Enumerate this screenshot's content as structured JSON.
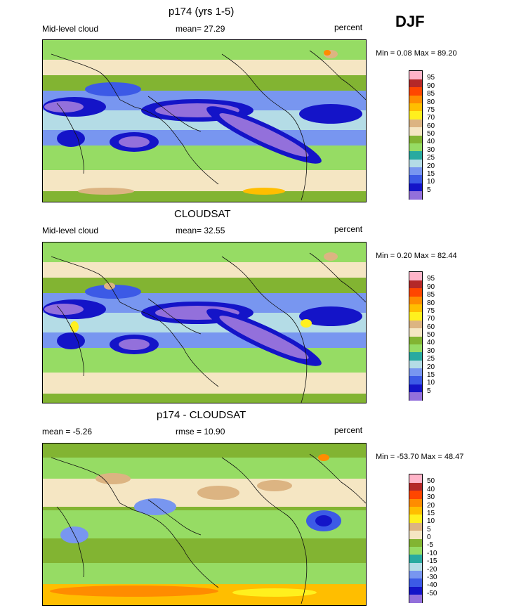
{
  "season": "DJF",
  "colors": {
    "abs": [
      "#9370db",
      "#1414c8",
      "#3c5ae6",
      "#7896f0",
      "#b4dce6",
      "#28aaa0",
      "#96dc64",
      "#82b432",
      "#f5e6c3",
      "#dcb482",
      "#fff01e",
      "#ffbe00",
      "#ff8c00",
      "#ff4600",
      "#b42828",
      "#ffb4c8",
      "#ff1493"
    ],
    "diff": [
      "#9370db",
      "#1414c8",
      "#3c5ae6",
      "#7896f0",
      "#b4dce6",
      "#28aaa0",
      "#96dc64",
      "#82b432",
      "#f5e6c3",
      "#dcb482",
      "#fff01e",
      "#ffbe00",
      "#ff8c00",
      "#ff4600",
      "#b42828",
      "#ffb4c8",
      "#ff1493"
    ]
  },
  "chart_data": [
    {
      "type": "heatmap",
      "title": "p174 (yrs 1-5)",
      "left_label": "Mid-level cloud",
      "center_label": "mean=  27.29",
      "right_label": "percent",
      "minmax": "Min =   0.08 Max =  89.20",
      "mean": 27.29,
      "min": 0.08,
      "max": 89.2,
      "levels": [
        "5",
        "10",
        "15",
        "20",
        "25",
        "30",
        "40",
        "50",
        "60",
        "70",
        "75",
        "80",
        "85",
        "90",
        "95"
      ]
    },
    {
      "type": "heatmap",
      "title": "CLOUDSAT",
      "left_label": "Mid-level cloud",
      "center_label": "mean=  32.55",
      "right_label": "percent",
      "minmax": "Min =   0.20 Max =  82.44",
      "mean": 32.55,
      "min": 0.2,
      "max": 82.44,
      "levels": [
        "5",
        "10",
        "15",
        "20",
        "25",
        "30",
        "40",
        "50",
        "60",
        "70",
        "75",
        "80",
        "85",
        "90",
        "95"
      ]
    },
    {
      "type": "heatmap",
      "title": "p174 - CLOUDSAT",
      "left_label": "mean =  -5.26",
      "center_label": "rmse =  10.90",
      "right_label": "percent",
      "minmax": "Min = -53.70 Max =  48.47",
      "mean": -5.26,
      "rmse": 10.9,
      "min": -53.7,
      "max": 48.47,
      "levels": [
        "-50",
        "-40",
        "-30",
        "-20",
        "-15",
        "-10",
        "-5",
        "0",
        "5",
        "10",
        "15",
        "20",
        "30",
        "40",
        "50"
      ]
    }
  ]
}
